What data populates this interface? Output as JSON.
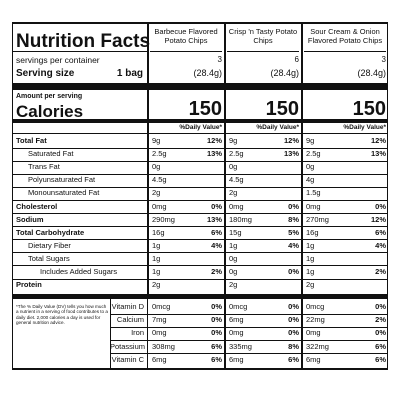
{
  "header": {
    "title": "Nutrition Facts",
    "columns": [
      "Barbecue Flavored Potato Chips",
      "Crisp 'n Tasty Potato Chips",
      "Sour Cream & Onion Flavored Potato Chips"
    ]
  },
  "servings": {
    "label": "servings per container",
    "values": [
      "3",
      "6",
      "3"
    ]
  },
  "serving_size": {
    "label": "Serving size",
    "amount": "1 bag",
    "values": [
      "(28.4g)",
      "(28.4g)",
      "(28.4g)"
    ]
  },
  "calories": {
    "heading": "Amount per serving",
    "label": "Calories",
    "values": [
      "150",
      "150",
      "150"
    ]
  },
  "daily_value_heading": [
    "%Daily Value*",
    "%Daily Value*",
    "%Daily Value*"
  ],
  "nutrients": [
    {
      "name": "Total Fat",
      "values": [
        {
          "amount": "9g",
          "dv": "12%"
        },
        {
          "amount": "9g",
          "dv": "12%"
        },
        {
          "amount": "9g",
          "dv": "12%"
        }
      ]
    },
    {
      "name": "Saturated Fat",
      "values": [
        {
          "amount": "2.5g",
          "dv": "13%"
        },
        {
          "amount": "2.5g",
          "dv": "13%"
        },
        {
          "amount": "2.5g",
          "dv": "13%"
        }
      ]
    },
    {
      "name": "Trans Fat",
      "values": [
        {
          "amount": "0g"
        },
        {
          "amount": "0g"
        },
        {
          "amount": "0g"
        }
      ]
    },
    {
      "name": "Polyunsaturated Fat",
      "values": [
        {
          "amount": "4.5g"
        },
        {
          "amount": "4.5g"
        },
        {
          "amount": "4g"
        }
      ]
    },
    {
      "name": "Monounsaturated Fat",
      "values": [
        {
          "amount": "2g"
        },
        {
          "amount": "2g"
        },
        {
          "amount": "1.5g"
        }
      ]
    },
    {
      "name": "Cholesterol",
      "values": [
        {
          "amount": "0mg",
          "dv": "0%"
        },
        {
          "amount": "0mg",
          "dv": "0%"
        },
        {
          "amount": "0mg",
          "dv": "0%"
        }
      ]
    },
    {
      "name": "Sodium",
      "values": [
        {
          "amount": "290mg",
          "dv": "13%"
        },
        {
          "amount": "180mg",
          "dv": "8%"
        },
        {
          "amount": "270mg",
          "dv": "12%"
        }
      ]
    },
    {
      "name": "Total Carbohydrate",
      "values": [
        {
          "amount": "16g",
          "dv": "6%"
        },
        {
          "amount": "15g",
          "dv": "5%"
        },
        {
          "amount": "16g",
          "dv": "6%"
        }
      ]
    },
    {
      "name": "Dietary Fiber",
      "values": [
        {
          "amount": "1g",
          "dv": "4%"
        },
        {
          "amount": "1g",
          "dv": "4%"
        },
        {
          "amount": "1g",
          "dv": "4%"
        }
      ]
    },
    {
      "name": "Total Sugars",
      "values": [
        {
          "amount": "1g"
        },
        {
          "amount": "0g"
        },
        {
          "amount": "1g"
        }
      ]
    },
    {
      "name": "Includes Added Sugars",
      "values": [
        {
          "amount": "1g",
          "dv": "2%"
        },
        {
          "amount": "0g",
          "dv": "0%"
        },
        {
          "amount": "1g",
          "dv": "2%"
        }
      ]
    },
    {
      "name": "Protein",
      "values": [
        {
          "amount": "2g"
        },
        {
          "amount": "2g"
        },
        {
          "amount": "2g"
        }
      ]
    }
  ],
  "footnote": "*The % Daily Value (DV) tells you how much a nutrient in a serving of food contributes to a daily diet. 2,000 calories a day is used for general nutrition advice.",
  "vitamins": [
    {
      "name": "Vitamin D",
      "values": [
        {
          "amount": "0mcg",
          "dv": "0%"
        },
        {
          "amount": "0mcg",
          "dv": "0%"
        },
        {
          "amount": "0mcg",
          "dv": "0%"
        }
      ]
    },
    {
      "name": "Calcium",
      "values": [
        {
          "amount": "7mg",
          "dv": "0%"
        },
        {
          "amount": "6mg",
          "dv": "0%"
        },
        {
          "amount": "22mg",
          "dv": "2%"
        }
      ]
    },
    {
      "name": "Iron",
      "values": [
        {
          "amount": "0mg",
          "dv": "0%"
        },
        {
          "amount": "0mg",
          "dv": "0%"
        },
        {
          "amount": "0mg",
          "dv": "0%"
        }
      ]
    },
    {
      "name": "Potassium",
      "values": [
        {
          "amount": "308mg",
          "dv": "6%"
        },
        {
          "amount": "335mg",
          "dv": "8%"
        },
        {
          "amount": "322mg",
          "dv": "6%"
        }
      ]
    },
    {
      "name": "Vitamin C",
      "values": [
        {
          "amount": "6mg",
          "dv": "6%"
        },
        {
          "amount": "6mg",
          "dv": "6%"
        },
        {
          "amount": "6mg",
          "dv": "6%"
        }
      ]
    }
  ]
}
